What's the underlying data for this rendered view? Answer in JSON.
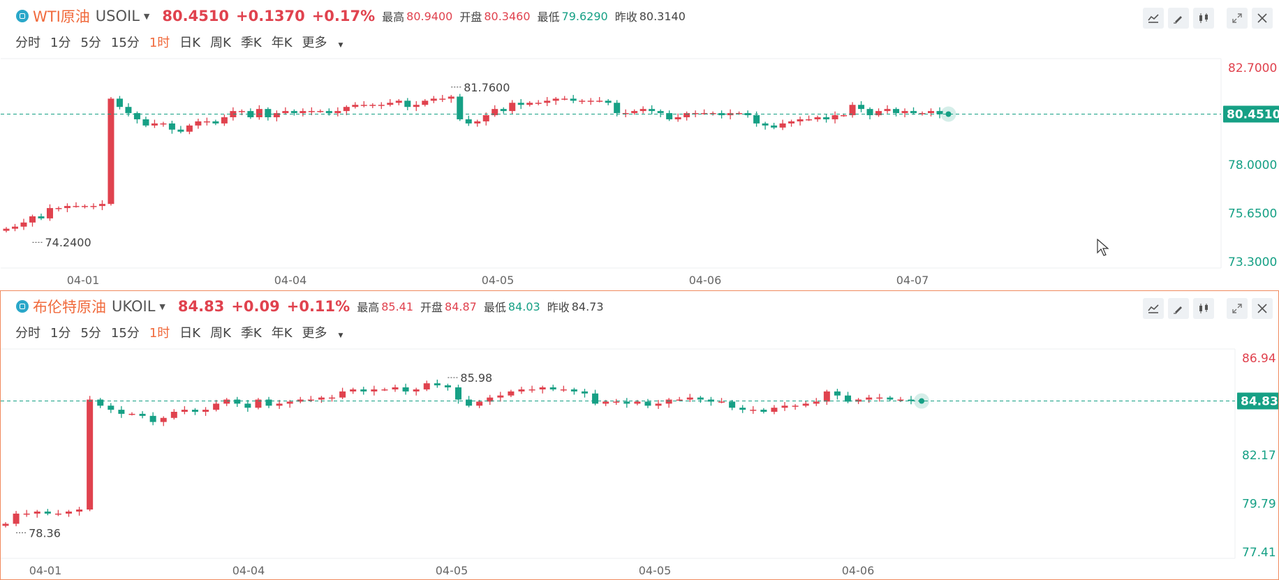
{
  "periods": [
    "分时",
    "1分",
    "5分",
    "15分",
    "1时",
    "日K",
    "周K",
    "季K",
    "年K",
    "更多"
  ],
  "active_period": "1时",
  "colors": {
    "up": "#e0424e",
    "down": "#16a085",
    "accent": "#f06a3c",
    "current_line": "#16a085"
  },
  "icons": [
    "indicator-icon",
    "draw-pen-icon",
    "candle-style-icon",
    "expand-icon",
    "close-icon"
  ],
  "wti": {
    "name": "WTI原油",
    "code": "USOIL",
    "price": "80.4510",
    "change": "+0.1370",
    "change_pct": "+0.17%",
    "stats": [
      {
        "label": "最高",
        "value": "80.9400",
        "tone": "up"
      },
      {
        "label": "开盘",
        "value": "80.3460",
        "tone": "up"
      },
      {
        "label": "最低",
        "value": "79.6290",
        "tone": "down"
      },
      {
        "label": "昨收",
        "value": "80.3140",
        "tone": "neu"
      }
    ]
  },
  "ukoil": {
    "name": "布伦特原油",
    "code": "UKOIL",
    "price": "84.83",
    "change": "+0.09",
    "change_pct": "+0.11%",
    "stats": [
      {
        "label": "最高",
        "value": "85.41",
        "tone": "up"
      },
      {
        "label": "开盘",
        "value": "84.87",
        "tone": "up"
      },
      {
        "label": "最低",
        "value": "84.03",
        "tone": "down"
      },
      {
        "label": "昨收",
        "value": "84.73",
        "tone": "neu"
      }
    ]
  },
  "chart_data": [
    {
      "type": "candlestick",
      "title": "WTI原油 USOIL 1时",
      "x_tick_labels": [
        "04-01",
        "04-04",
        "04-05",
        "04-06",
        "04-07"
      ],
      "y_tick_labels": [
        "82.7000",
        "78.0000",
        "75.6500",
        "73.3000"
      ],
      "ylim": [
        73.3,
        82.7
      ],
      "current_price": 80.451,
      "current_price_label": "80.4510",
      "high_label": "81.7600",
      "high_value": 81.76,
      "low_label": "74.2400",
      "low_value": 74.24,
      "grid": false,
      "closes": [
        74.9,
        75.0,
        75.2,
        75.5,
        75.4,
        75.9,
        75.9,
        76.0,
        76.0,
        76.0,
        76.0,
        76.1,
        81.2,
        80.8,
        80.5,
        80.2,
        79.9,
        80.0,
        80.0,
        79.7,
        79.6,
        79.9,
        80.1,
        80.1,
        80.0,
        80.3,
        80.6,
        80.6,
        80.3,
        80.7,
        80.3,
        80.5,
        80.6,
        80.5,
        80.6,
        80.6,
        80.6,
        80.5,
        80.6,
        80.8,
        80.9,
        80.9,
        80.9,
        80.9,
        81.0,
        81.1,
        80.8,
        80.9,
        81.1,
        81.2,
        81.2,
        81.3,
        80.2,
        80.0,
        80.1,
        80.4,
        80.7,
        80.6,
        81.0,
        80.9,
        81.0,
        81.0,
        81.1,
        81.2,
        81.2,
        81.1,
        81.1,
        81.1,
        81.1,
        81.0,
        80.5,
        80.5,
        80.6,
        80.7,
        80.6,
        80.5,
        80.2,
        80.3,
        80.5,
        80.5,
        80.5,
        80.5,
        80.4,
        80.5,
        80.5,
        80.4,
        80.0,
        79.9,
        79.8,
        80.0,
        80.1,
        80.2,
        80.2,
        80.3,
        80.2,
        80.4,
        80.4,
        80.9,
        80.7,
        80.4,
        80.6,
        80.7,
        80.5,
        80.6,
        80.5,
        80.5,
        80.6,
        80.45
      ]
    },
    {
      "type": "candlestick",
      "title": "布伦特原油 UKOIL 1时",
      "x_tick_labels": [
        "04-01",
        "04-04",
        "04-05",
        "04-05",
        "04-06"
      ],
      "y_tick_labels": [
        "86.94",
        "82.17",
        "79.79",
        "77.41"
      ],
      "ylim": [
        77.41,
        86.94
      ],
      "current_price": 84.83,
      "current_price_label": "84.83",
      "high_label": "85.98",
      "high_value": 85.98,
      "low_label": "78.36",
      "low_value": 78.36,
      "grid": false,
      "closes": [
        78.8,
        79.3,
        79.3,
        79.4,
        79.3,
        79.3,
        79.4,
        79.5,
        84.9,
        84.6,
        84.4,
        84.2,
        84.2,
        84.1,
        83.8,
        84.0,
        84.3,
        84.4,
        84.3,
        84.4,
        84.7,
        84.9,
        84.7,
        84.5,
        84.9,
        84.6,
        84.7,
        84.8,
        84.9,
        84.9,
        85.0,
        85.0,
        85.3,
        85.4,
        85.3,
        85.4,
        85.4,
        85.5,
        85.3,
        85.4,
        85.7,
        85.6,
        85.5,
        84.9,
        84.6,
        84.8,
        85.0,
        85.1,
        85.3,
        85.4,
        85.4,
        85.5,
        85.4,
        85.4,
        85.3,
        85.2,
        84.7,
        84.8,
        84.8,
        84.7,
        84.8,
        84.6,
        84.7,
        84.9,
        84.9,
        85.0,
        84.9,
        84.8,
        84.8,
        84.5,
        84.4,
        84.4,
        84.3,
        84.5,
        84.6,
        84.6,
        84.7,
        84.8,
        85.3,
        85.1,
        84.8,
        84.9,
        85.0,
        85.0,
        84.9,
        84.9,
        84.83
      ]
    }
  ]
}
